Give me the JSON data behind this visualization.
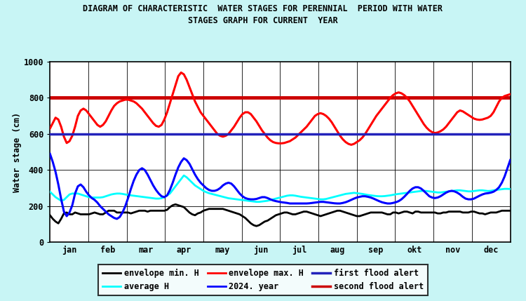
{
  "title_line1": "DIAGRAM OF CHARACTERISTIC  WATER STAGES FOR PERENNIAL  PERIOD WITH WATER",
  "title_line2": "STAGES GRAPH FOR CURRENT  YEAR",
  "ylabel": "Water stage (cm)",
  "bg_color": "#c8f5f5",
  "plot_bg": "#ffffff",
  "ylim": [
    0,
    1000
  ],
  "yticks": [
    0,
    200,
    400,
    600,
    800,
    1000
  ],
  "months": [
    "jan",
    "feb",
    "mar",
    "apr",
    "may",
    "jun",
    "jul",
    "aug",
    "sep",
    "okt",
    "nov",
    "dec"
  ],
  "first_flood_alert": 600,
  "second_flood_alert": 800,
  "envelope_min_H": [
    150,
    130,
    115,
    105,
    130,
    160,
    165,
    155,
    155,
    165,
    160,
    155,
    155,
    155,
    155,
    160,
    165,
    160,
    155,
    155,
    165,
    175,
    175,
    175,
    165,
    165,
    165,
    165,
    165,
    160,
    165,
    170,
    175,
    175,
    175,
    170,
    175,
    175,
    175,
    175,
    175,
    175,
    180,
    195,
    205,
    210,
    205,
    200,
    195,
    180,
    165,
    155,
    150,
    160,
    165,
    175,
    180,
    185,
    185,
    185,
    185,
    185,
    185,
    180,
    175,
    170,
    165,
    160,
    155,
    145,
    135,
    120,
    105,
    95,
    90,
    95,
    105,
    115,
    120,
    130,
    140,
    150,
    155,
    160,
    165,
    165,
    160,
    155,
    155,
    160,
    165,
    170,
    170,
    165,
    160,
    155,
    150,
    145,
    150,
    155,
    160,
    165,
    170,
    175,
    175,
    170,
    165,
    160,
    155,
    150,
    145,
    145,
    150,
    155,
    160,
    165,
    165,
    165,
    165,
    165,
    160,
    155,
    155,
    165,
    165,
    160,
    165,
    170,
    170,
    165,
    160,
    170,
    170,
    165,
    165,
    165,
    165,
    165,
    165,
    160,
    160,
    165,
    165,
    170,
    170,
    170,
    170,
    170,
    165,
    165,
    165,
    170,
    170,
    165,
    160,
    160,
    155,
    160,
    165,
    165,
    165,
    170,
    175,
    175,
    175,
    175
  ],
  "average_H": [
    280,
    265,
    250,
    240,
    230,
    235,
    250,
    265,
    270,
    270,
    270,
    265,
    260,
    255,
    250,
    248,
    248,
    248,
    248,
    250,
    255,
    260,
    265,
    268,
    270,
    270,
    268,
    265,
    262,
    260,
    258,
    256,
    254,
    252,
    250,
    248,
    246,
    244,
    242,
    242,
    244,
    250,
    260,
    270,
    290,
    310,
    330,
    350,
    370,
    360,
    345,
    330,
    315,
    305,
    295,
    285,
    278,
    272,
    268,
    264,
    260,
    256,
    252,
    248,
    244,
    242,
    240,
    238,
    236,
    234,
    232,
    230,
    228,
    226,
    224,
    224,
    226,
    228,
    230,
    234,
    238,
    242,
    246,
    250,
    254,
    258,
    260,
    260,
    258,
    255,
    252,
    250,
    248,
    246,
    244,
    242,
    240,
    238,
    238,
    240,
    244,
    248,
    252,
    256,
    260,
    264,
    268,
    270,
    272,
    274,
    272,
    270,
    268,
    265,
    262,
    260,
    258,
    256,
    255,
    255,
    256,
    258,
    260,
    263,
    266,
    268,
    270,
    272,
    274,
    276,
    278,
    280,
    282,
    284,
    285,
    284,
    282,
    280,
    278,
    276,
    276,
    278,
    280,
    282,
    284,
    286,
    288,
    288,
    286,
    284,
    282,
    282,
    284,
    286,
    288,
    288,
    286,
    284,
    285,
    288,
    290,
    292,
    294,
    296,
    296,
    295
  ],
  "envelope_max_H": [
    630,
    660,
    690,
    680,
    640,
    585,
    550,
    560,
    590,
    640,
    700,
    730,
    740,
    730,
    710,
    690,
    670,
    650,
    640,
    650,
    670,
    700,
    730,
    755,
    770,
    780,
    785,
    790,
    790,
    785,
    780,
    770,
    755,
    740,
    720,
    700,
    680,
    660,
    645,
    640,
    650,
    680,
    720,
    770,
    820,
    870,
    920,
    940,
    930,
    900,
    860,
    820,
    780,
    750,
    720,
    700,
    680,
    660,
    640,
    620,
    600,
    590,
    585,
    590,
    600,
    620,
    640,
    665,
    690,
    710,
    720,
    720,
    710,
    690,
    670,
    645,
    620,
    600,
    580,
    565,
    555,
    550,
    548,
    548,
    550,
    555,
    560,
    570,
    580,
    595,
    610,
    625,
    640,
    660,
    680,
    700,
    710,
    715,
    710,
    700,
    685,
    665,
    640,
    615,
    590,
    570,
    555,
    545,
    540,
    545,
    555,
    565,
    580,
    600,
    625,
    650,
    675,
    700,
    720,
    740,
    760,
    780,
    800,
    815,
    825,
    830,
    825,
    815,
    800,
    780,
    755,
    730,
    705,
    680,
    655,
    635,
    620,
    610,
    605,
    608,
    615,
    625,
    640,
    660,
    680,
    700,
    720,
    730,
    725,
    715,
    705,
    695,
    685,
    680,
    678,
    680,
    685,
    690,
    700,
    720,
    750,
    780,
    800,
    810,
    815,
    820
  ],
  "year2024_H": [
    490,
    445,
    390,
    320,
    240,
    170,
    145,
    165,
    205,
    270,
    310,
    320,
    305,
    280,
    260,
    245,
    235,
    220,
    200,
    185,
    170,
    155,
    145,
    135,
    130,
    140,
    165,
    200,
    245,
    295,
    340,
    375,
    400,
    410,
    400,
    375,
    345,
    315,
    290,
    270,
    255,
    250,
    260,
    290,
    330,
    375,
    415,
    445,
    465,
    455,
    435,
    405,
    375,
    350,
    330,
    315,
    300,
    290,
    285,
    285,
    290,
    300,
    315,
    325,
    330,
    325,
    310,
    290,
    270,
    255,
    245,
    240,
    238,
    238,
    240,
    245,
    250,
    250,
    245,
    238,
    232,
    228,
    225,
    222,
    220,
    218,
    215,
    215,
    215,
    215,
    215,
    215,
    215,
    216,
    218,
    220,
    222,
    224,
    224,
    222,
    220,
    218,
    216,
    215,
    215,
    218,
    222,
    228,
    235,
    242,
    248,
    252,
    255,
    255,
    252,
    248,
    242,
    235,
    228,
    222,
    218,
    215,
    215,
    218,
    222,
    228,
    238,
    252,
    268,
    285,
    298,
    305,
    305,
    298,
    285,
    270,
    255,
    248,
    245,
    248,
    255,
    265,
    275,
    282,
    285,
    282,
    275,
    265,
    252,
    242,
    238,
    238,
    242,
    250,
    258,
    265,
    270,
    272,
    275,
    280,
    290,
    305,
    330,
    365,
    410,
    455
  ]
}
